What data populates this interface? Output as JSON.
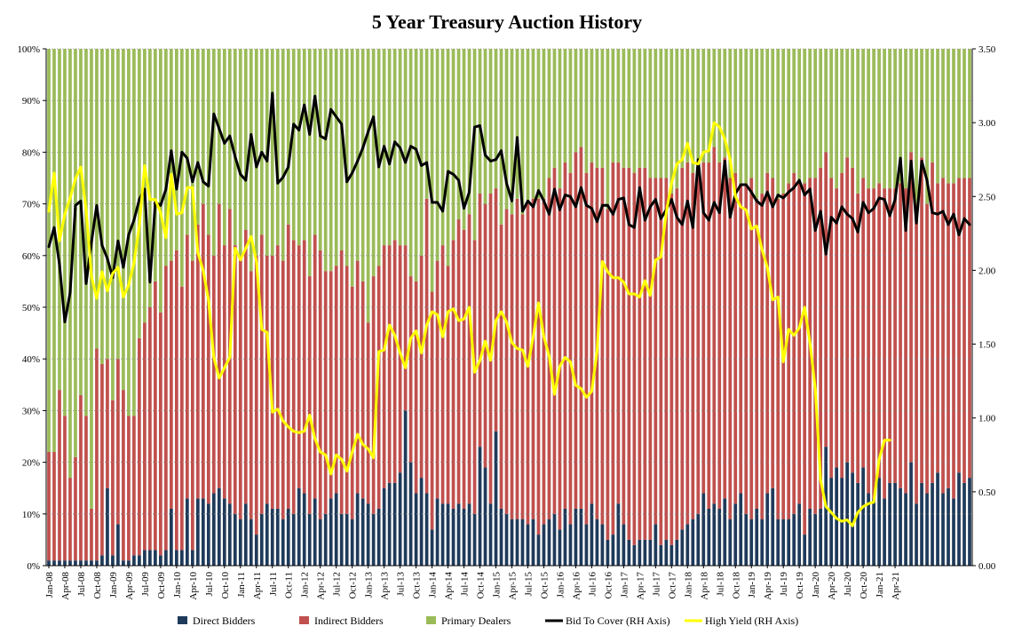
{
  "chart_data": {
    "type": "bar",
    "title": "5 Year Treasury Auction History",
    "stacked": true,
    "y_left": {
      "range": [
        0,
        100
      ],
      "unit": "%",
      "ticks": [
        "0%",
        "10%",
        "20%",
        "30%",
        "40%",
        "50%",
        "60%",
        "70%",
        "80%",
        "90%",
        "100%"
      ]
    },
    "y_right": {
      "range": [
        0,
        3.5
      ],
      "ticks": [
        "0.00",
        "0.50",
        "1.00",
        "1.50",
        "2.00",
        "2.50",
        "3.00",
        "3.50"
      ]
    },
    "x_tick_labels": [
      "Jan-08",
      "Apr-08",
      "Jul-08",
      "Oct-08",
      "Jan-09",
      "Apr-09",
      "Jul-09",
      "Oct-09",
      "Jan-10",
      "Apr-10",
      "Jul-10",
      "Oct-10",
      "Jan-11",
      "Apr-11",
      "Jul-11",
      "Oct-11",
      "Jan-12",
      "Apr-12",
      "Jul-12",
      "Oct-12",
      "Jan-13",
      "Apr-13",
      "Jul-13",
      "Oct-13",
      "Jan-14",
      "Apr-14",
      "Jul-14",
      "Oct-14",
      "Jan-15",
      "Apr-15",
      "Jul-15",
      "Oct-15",
      "Jan-16",
      "Apr-16",
      "Jul-16",
      "Oct-16",
      "Jan-17",
      "Apr-17",
      "Jul-17",
      "Oct-17",
      "Jan-18",
      "Apr-18",
      "Jul-18",
      "Oct-18",
      "Jan-19",
      "Apr-19",
      "Jul-19",
      "Oct-19",
      "Jan-20",
      "Apr-20",
      "Jul-20",
      "Oct-20",
      "Jan-21",
      "Apr-21"
    ],
    "legend_position": "bottom",
    "colors": {
      "direct": "#1f3a5a",
      "indirect": "#c0504d",
      "dealers": "#9bbb59",
      "btc": "#000000",
      "yield": "#ffff00",
      "grid": "#8a8a8a"
    },
    "series": [
      {
        "name": "Direct Bidders",
        "kind": "bar",
        "axis": "left",
        "values": [
          1,
          1,
          1,
          1,
          1,
          1,
          1,
          1,
          1,
          1,
          2,
          15,
          2,
          8,
          1,
          1,
          2,
          2,
          3,
          3,
          3,
          2,
          3,
          11,
          3,
          3,
          13,
          3,
          13,
          13,
          12,
          14,
          15,
          13,
          12,
          10,
          9,
          12,
          9,
          6,
          10,
          12,
          11,
          11,
          9,
          11,
          10,
          15,
          14,
          10,
          13,
          9,
          10,
          13,
          14,
          10,
          10,
          9,
          14,
          13,
          12,
          10,
          11,
          15,
          16,
          16,
          18,
          30,
          20,
          14,
          17,
          14,
          7,
          13,
          12,
          12,
          11,
          12,
          11,
          12,
          10,
          23,
          19,
          12,
          26,
          11,
          10,
          9,
          9,
          9,
          8,
          9,
          6,
          8,
          9,
          10,
          7,
          11,
          8,
          11,
          11,
          8,
          12,
          9,
          8,
          5,
          6,
          12,
          8,
          5,
          4,
          5,
          5,
          5,
          8,
          4,
          5,
          4,
          5,
          7,
          8,
          9,
          10,
          14,
          11,
          12,
          11,
          13,
          9,
          12,
          14,
          10,
          9,
          11,
          9,
          14,
          15,
          9,
          9,
          9,
          10,
          12,
          6,
          11,
          10,
          11,
          23,
          17,
          19,
          17,
          20,
          18,
          16,
          19,
          14,
          13,
          17,
          13,
          16,
          16,
          15,
          14,
          20,
          12,
          16,
          14,
          16,
          18,
          14,
          15,
          13,
          18,
          16,
          17
        ],
        "color_key": "direct"
      },
      {
        "name": "Indirect Bidders",
        "kind": "bar",
        "axis": "left",
        "values": [
          21,
          21,
          33,
          28,
          16,
          20,
          32,
          28,
          10,
          41,
          37,
          25,
          30,
          32,
          33,
          28,
          27,
          42,
          44,
          47,
          52,
          47,
          55,
          48,
          58,
          51,
          51,
          56,
          53,
          57,
          52,
          46,
          55,
          49,
          57,
          52,
          51,
          53,
          48,
          54,
          54,
          48,
          49,
          51,
          50,
          55,
          53,
          47,
          49,
          46,
          51,
          52,
          47,
          44,
          44,
          51,
          48,
          45,
          45,
          42,
          35,
          46,
          47,
          47,
          46,
          47,
          44,
          32,
          36,
          41,
          43,
          57,
          46,
          46,
          50,
          46,
          52,
          55,
          54,
          56,
          53,
          49,
          51,
          60,
          47,
          55,
          59,
          59,
          62,
          59,
          62,
          62,
          65,
          63,
          66,
          67,
          66,
          67,
          68,
          69,
          70,
          68,
          66,
          68,
          69,
          64,
          72,
          66,
          69,
          72,
          72,
          72,
          72,
          70,
          67,
          71,
          70,
          68,
          68,
          70,
          70,
          67,
          66,
          64,
          67,
          69,
          67,
          66,
          66,
          64,
          60,
          64,
          66,
          60,
          63,
          62,
          60,
          62,
          63,
          65,
          66,
          62,
          68,
          64,
          65,
          66,
          57,
          58,
          54,
          59,
          59,
          59,
          56,
          56,
          59,
          60,
          57,
          60,
          57,
          57,
          59,
          59,
          60,
          58,
          63,
          56,
          62,
          56,
          61,
          59,
          61,
          57,
          59,
          58
        ],
        "color_key": "indirect"
      },
      {
        "name": "Primary Dealers",
        "kind": "bar",
        "axis": "left",
        "values": [
          78,
          78,
          66,
          71,
          83,
          79,
          67,
          71,
          89,
          58,
          61,
          60,
          68,
          60,
          66,
          71,
          71,
          56,
          53,
          50,
          45,
          51,
          42,
          41,
          39,
          46,
          36,
          41,
          34,
          30,
          36,
          40,
          30,
          38,
          31,
          38,
          40,
          35,
          43,
          40,
          36,
          40,
          40,
          38,
          41,
          34,
          37,
          38,
          37,
          44,
          36,
          39,
          43,
          43,
          42,
          39,
          42,
          46,
          41,
          45,
          53,
          44,
          42,
          38,
          38,
          37,
          38,
          38,
          44,
          45,
          40,
          29,
          47,
          41,
          38,
          42,
          37,
          33,
          35,
          32,
          37,
          28,
          30,
          28,
          27,
          34,
          31,
          32,
          29,
          32,
          30,
          29,
          29,
          29,
          25,
          23,
          27,
          22,
          24,
          20,
          19,
          24,
          22,
          23,
          23,
          31,
          22,
          22,
          23,
          23,
          24,
          23,
          23,
          25,
          25,
          25,
          25,
          28,
          27,
          23,
          22,
          24,
          24,
          22,
          22,
          19,
          22,
          21,
          25,
          24,
          26,
          26,
          25,
          29,
          28,
          24,
          25,
          29,
          28,
          26,
          24,
          26,
          26,
          25,
          25,
          23,
          20,
          25,
          27,
          24,
          21,
          23,
          28,
          25,
          27,
          27,
          26,
          27,
          27,
          27,
          26,
          27,
          20,
          30,
          21,
          30,
          22,
          26,
          25,
          26,
          26,
          25,
          25,
          25
        ],
        "color_key": "dealers"
      },
      {
        "name": "Bid To Cover (RH Axis)",
        "kind": "line",
        "axis": "right",
        "values": [
          2.16,
          2.29,
          2.04,
          1.65,
          1.85,
          2.44,
          2.47,
          1.91,
          2.19,
          2.44,
          2.17,
          2.08,
          1.95,
          2.2,
          2.02,
          2.24,
          2.34,
          2.48,
          2.55,
          1.92,
          2.46,
          2.44,
          2.55,
          2.81,
          2.55,
          2.8,
          2.76,
          2.6,
          2.73,
          2.6,
          2.57,
          3.06,
          2.96,
          2.86,
          2.91,
          2.77,
          2.65,
          2.61,
          2.92,
          2.7,
          2.8,
          2.74,
          3.2,
          2.59,
          2.63,
          2.7,
          2.99,
          2.95,
          3.12,
          2.92,
          3.18,
          2.91,
          2.89,
          3.09,
          3.04,
          2.99,
          2.6,
          2.66,
          2.74,
          2.83,
          2.94,
          3.04,
          2.7,
          2.84,
          2.72,
          2.87,
          2.83,
          2.73,
          2.84,
          2.82,
          2.71,
          2.73,
          2.46,
          2.46,
          2.4,
          2.67,
          2.65,
          2.61,
          2.42,
          2.53,
          2.97,
          2.98,
          2.78,
          2.74,
          2.75,
          2.81,
          2.59,
          2.47,
          2.9,
          2.4,
          2.47,
          2.43,
          2.54,
          2.47,
          2.38,
          2.55,
          2.41,
          2.51,
          2.5,
          2.43,
          2.56,
          2.44,
          2.42,
          2.33,
          2.44,
          2.44,
          2.38,
          2.48,
          2.49,
          2.31,
          2.29,
          2.56,
          2.34,
          2.43,
          2.48,
          2.35,
          2.41,
          2.48,
          2.36,
          2.31,
          2.47,
          2.29,
          2.75,
          2.39,
          2.34,
          2.46,
          2.39,
          2.74,
          2.36,
          2.52,
          2.58,
          2.58,
          2.53,
          2.47,
          2.44,
          2.53,
          2.43,
          2.51,
          2.49,
          2.53,
          2.56,
          2.61,
          2.51,
          2.55,
          2.27,
          2.4,
          2.11,
          2.36,
          2.32,
          2.43,
          2.38,
          2.35,
          2.26,
          2.46,
          2.39,
          2.42,
          2.49,
          2.48,
          2.37,
          2.48,
          2.76,
          2.27,
          2.74,
          2.32,
          2.74,
          2.61,
          2.39,
          2.38,
          2.4,
          2.31,
          2.38,
          2.24,
          2.35,
          2.31
        ],
        "color_key": "btc"
      },
      {
        "name": "High Yield (RH Axis)",
        "kind": "line",
        "axis": "right",
        "values": [
          2.4,
          2.66,
          2.2,
          2.38,
          2.49,
          2.62,
          2.7,
          2.41,
          1.96,
          1.81,
          1.99,
          1.86,
          1.98,
          2.02,
          1.82,
          1.9,
          2.05,
          2.3,
          2.71,
          2.48,
          2.48,
          2.39,
          2.22,
          2.65,
          2.38,
          2.39,
          2.56,
          2.56,
          2.12,
          2.0,
          1.8,
          1.41,
          1.27,
          1.34,
          1.41,
          2.15,
          2.07,
          2.15,
          2.23,
          2.06,
          1.6,
          1.58,
          1.04,
          1.06,
          0.98,
          0.94,
          0.91,
          0.9,
          0.91,
          1.02,
          0.86,
          0.77,
          0.75,
          0.62,
          0.75,
          0.72,
          0.64,
          0.77,
          0.89,
          0.82,
          0.79,
          0.73,
          1.45,
          1.46,
          1.63,
          1.56,
          1.44,
          1.34,
          1.54,
          1.59,
          1.44,
          1.63,
          1.72,
          1.7,
          1.55,
          1.72,
          1.74,
          1.66,
          1.67,
          1.75,
          1.31,
          1.39,
          1.52,
          1.39,
          1.66,
          1.72,
          1.65,
          1.51,
          1.47,
          1.46,
          1.35,
          1.55,
          1.78,
          1.55,
          1.42,
          1.16,
          1.35,
          1.41,
          1.38,
          1.22,
          1.2,
          1.14,
          1.18,
          1.45,
          2.06,
          1.99,
          1.95,
          1.95,
          1.92,
          1.84,
          1.84,
          1.82,
          1.93,
          1.83,
          2.07,
          2.09,
          2.39,
          2.59,
          2.72,
          2.75,
          2.86,
          2.73,
          2.72,
          2.8,
          2.81,
          3.0,
          2.97,
          2.89,
          2.75,
          2.5,
          2.43,
          2.41,
          2.28,
          2.3,
          2.14,
          2.02,
          1.8,
          1.82,
          1.38,
          1.6,
          1.56,
          1.61,
          1.75,
          1.51,
          1.2,
          0.58,
          0.4,
          0.36,
          0.32,
          0.3,
          0.31,
          0.27,
          0.36,
          0.4,
          0.42,
          0.43,
          0.72,
          0.85,
          0.85
        ],
        "color_key": "yield"
      }
    ]
  }
}
